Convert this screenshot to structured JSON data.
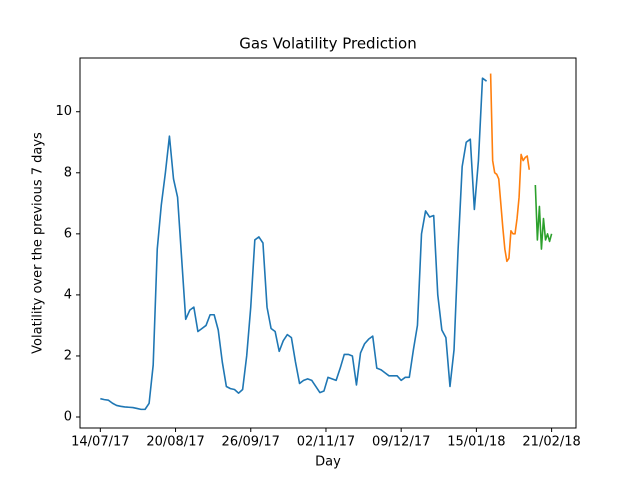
{
  "chart_data": {
    "type": "line",
    "title": "Gas Volatility Prediction",
    "x_label": "Day",
    "y_label": "Volatility over the previous 7 days",
    "xlim": [
      "2017-07-04",
      "2018-03-05"
    ],
    "xticks": [
      {
        "value": "2017-07-14",
        "label": "14/07/17"
      },
      {
        "value": "2017-08-20",
        "label": "20/08/17"
      },
      {
        "value": "2017-09-26",
        "label": "26/09/17"
      },
      {
        "value": "2017-11-02",
        "label": "02/11/17"
      },
      {
        "value": "2017-12-09",
        "label": "09/12/17"
      },
      {
        "value": "2018-01-15",
        "label": "15/01/18"
      },
      {
        "value": "2018-02-21",
        "label": "21/02/18"
      }
    ],
    "ylim": [
      -0.36,
      11.76
    ],
    "yticks": [
      0,
      2,
      4,
      6,
      8,
      10
    ],
    "grid": false,
    "series": [
      {
        "color": "#1f77b4",
        "x": [
          "2017-07-14",
          "2017-07-16",
          "2017-07-18",
          "2017-07-20",
          "2017-07-22",
          "2017-07-24",
          "2017-07-26",
          "2017-07-28",
          "2017-07-30",
          "2017-08-01",
          "2017-08-03",
          "2017-08-05",
          "2017-08-07",
          "2017-08-09",
          "2017-08-11",
          "2017-08-13",
          "2017-08-15",
          "2017-08-17",
          "2017-08-19",
          "2017-08-21",
          "2017-08-23",
          "2017-08-25",
          "2017-08-27",
          "2017-08-29",
          "2017-08-31",
          "2017-09-02",
          "2017-09-04",
          "2017-09-06",
          "2017-09-08",
          "2017-09-10",
          "2017-09-12",
          "2017-09-14",
          "2017-09-16",
          "2017-09-18",
          "2017-09-20",
          "2017-09-22",
          "2017-09-24",
          "2017-09-26",
          "2017-09-28",
          "2017-09-30",
          "2017-10-02",
          "2017-10-04",
          "2017-10-06",
          "2017-10-08",
          "2017-10-10",
          "2017-10-12",
          "2017-10-14",
          "2017-10-16",
          "2017-10-18",
          "2017-10-20",
          "2017-10-22",
          "2017-10-24",
          "2017-10-26",
          "2017-10-28",
          "2017-10-30",
          "2017-11-01",
          "2017-11-03",
          "2017-11-05",
          "2017-11-07",
          "2017-11-09",
          "2017-11-11",
          "2017-11-13",
          "2017-11-15",
          "2017-11-17",
          "2017-11-19",
          "2017-11-21",
          "2017-11-23",
          "2017-11-25",
          "2017-11-27",
          "2017-11-29",
          "2017-12-01",
          "2017-12-03",
          "2017-12-05",
          "2017-12-07",
          "2017-12-09",
          "2017-12-11",
          "2017-12-13",
          "2017-12-15",
          "2017-12-17",
          "2017-12-19",
          "2017-12-21",
          "2017-12-23",
          "2017-12-25",
          "2017-12-27",
          "2017-12-29",
          "2017-12-31",
          "2018-01-02",
          "2018-01-04",
          "2018-01-06",
          "2018-01-08",
          "2018-01-10",
          "2018-01-12",
          "2018-01-14",
          "2018-01-16",
          "2018-01-18",
          "2018-01-20"
        ],
        "values": [
          0.6,
          0.57,
          0.55,
          0.45,
          0.38,
          0.35,
          0.33,
          0.32,
          0.31,
          0.28,
          0.25,
          0.25,
          0.45,
          1.7,
          5.5,
          6.95,
          8.0,
          9.2,
          7.8,
          7.2,
          5.2,
          3.2,
          3.5,
          3.6,
          2.8,
          2.9,
          3.0,
          3.35,
          3.35,
          2.85,
          1.8,
          1.0,
          0.93,
          0.9,
          0.78,
          0.9,
          2.0,
          3.6,
          5.8,
          5.9,
          5.7,
          3.6,
          2.9,
          2.8,
          2.15,
          2.5,
          2.7,
          2.6,
          1.8,
          1.1,
          1.2,
          1.25,
          1.2,
          1.0,
          0.8,
          0.85,
          1.3,
          1.25,
          1.2,
          1.6,
          2.05,
          2.05,
          2.0,
          1.05,
          2.1,
          2.4,
          2.55,
          2.65,
          1.6,
          1.55,
          1.45,
          1.35,
          1.35,
          1.35,
          1.2,
          1.3,
          1.3,
          2.2,
          3.0,
          6.0,
          6.75,
          6.55,
          6.6,
          4.0,
          2.85,
          2.6,
          1.0,
          2.2,
          5.5,
          8.2,
          9.0,
          9.1,
          6.8,
          8.4,
          11.1,
          11.0
        ]
      },
      {
        "color": "#ff7f0e",
        "x": [
          "2018-01-22",
          "2018-01-23",
          "2018-01-24",
          "2018-01-25",
          "2018-01-26",
          "2018-01-27",
          "2018-01-28",
          "2018-01-29",
          "2018-01-30",
          "2018-01-31",
          "2018-02-01",
          "2018-02-02",
          "2018-02-03",
          "2018-02-04",
          "2018-02-05",
          "2018-02-06",
          "2018-02-07",
          "2018-02-08",
          "2018-02-09",
          "2018-02-10"
        ],
        "values": [
          11.25,
          8.4,
          8.0,
          7.95,
          7.8,
          7.0,
          6.2,
          5.5,
          5.1,
          5.2,
          6.1,
          6.0,
          6.0,
          6.5,
          7.2,
          8.6,
          8.4,
          8.5,
          8.55,
          8.1
        ]
      },
      {
        "color": "#2ca02c",
        "x": [
          "2018-02-13",
          "2018-02-14",
          "2018-02-15",
          "2018-02-16",
          "2018-02-17",
          "2018-02-18",
          "2018-02-19",
          "2018-02-20",
          "2018-02-21"
        ],
        "values": [
          7.6,
          5.8,
          6.9,
          5.5,
          6.5,
          5.8,
          6.0,
          5.75,
          6.0
        ]
      }
    ]
  }
}
